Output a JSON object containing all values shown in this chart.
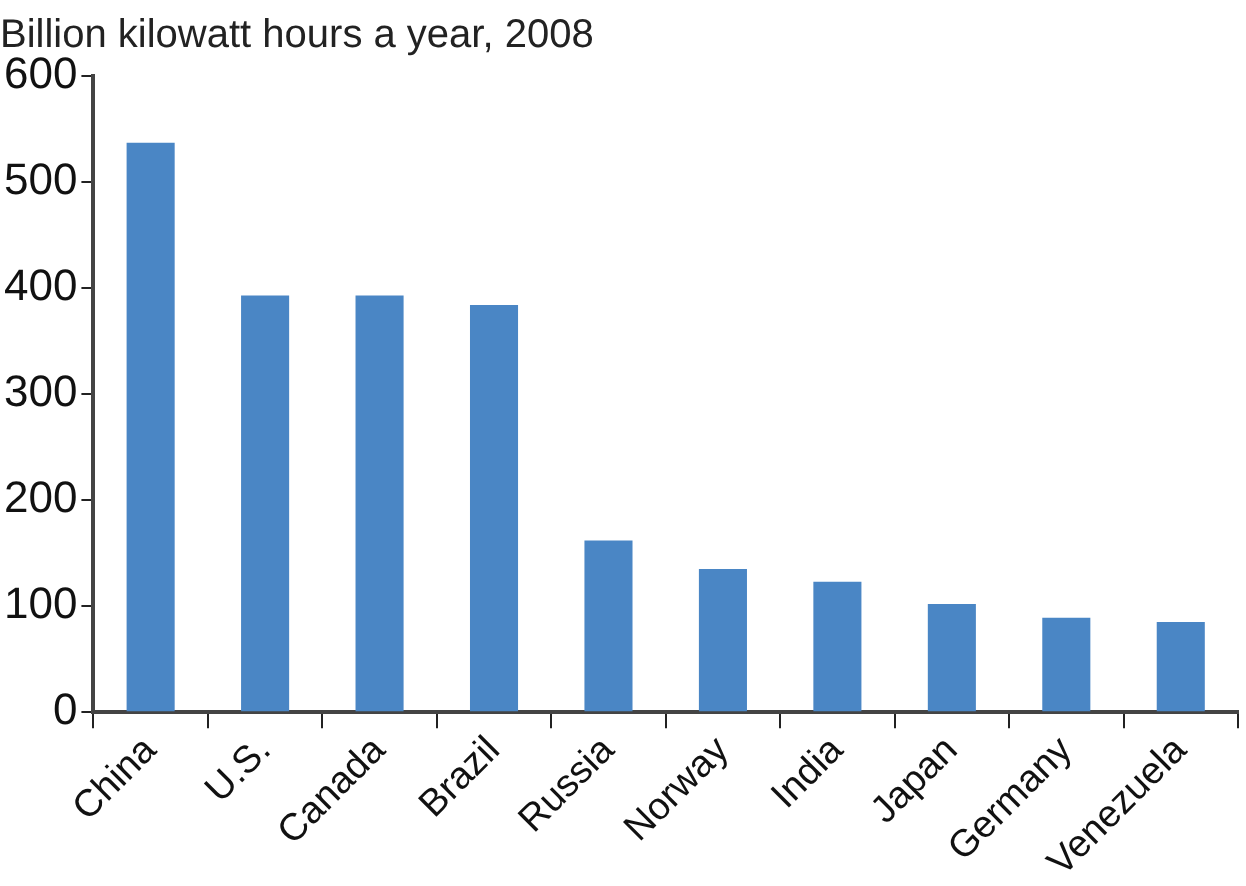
{
  "chart_data": {
    "type": "bar",
    "title": "Billion kilowatt hours a year, 2008",
    "categories": [
      "China",
      "U.S.",
      "Canada",
      "Brazil",
      "Russia",
      "Norway",
      "India",
      "Japan",
      "Germany",
      "Venezuela"
    ],
    "values": [
      537,
      393,
      393,
      384,
      162,
      135,
      123,
      102,
      89,
      85
    ],
    "color": "#4a86c5",
    "ylim": [
      0,
      600
    ],
    "yticks": [
      0,
      100,
      200,
      300,
      400,
      500,
      600
    ],
    "grid": false,
    "legend": false
  }
}
